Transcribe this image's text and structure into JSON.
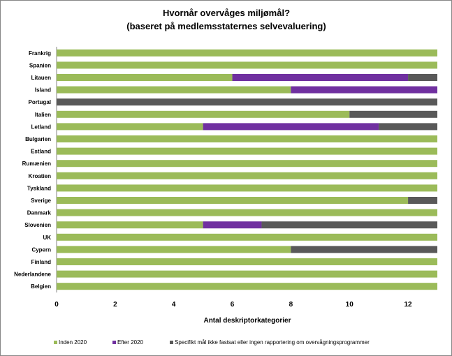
{
  "chart_data": {
    "type": "bar",
    "orientation": "horizontal",
    "stacked": true,
    "title": "Hvornår overvåges miljømål?",
    "subtitle": "(baseret på medlemsstaternes selvevaluering)",
    "xlabel": "Antal deskriptorkategorier",
    "ylabel": "",
    "xlim": [
      0,
      13
    ],
    "xticks": [
      0,
      2,
      4,
      6,
      8,
      10,
      12
    ],
    "grid": false,
    "legend_position": "bottom",
    "categories": [
      "Frankrig",
      "Spanien",
      "Litauen",
      "Island",
      "Portugal",
      "Italien",
      "Letland",
      "Bulgarien",
      "Estland",
      "Rumænien",
      "Kroatien",
      "Tyskland",
      "Sverige",
      "Danmark",
      "Slovenien",
      "UK",
      "Cypern",
      "Finland",
      "Nederlandene",
      "Belgien"
    ],
    "series": [
      {
        "name": "Inden 2020",
        "color": "#9bbb59",
        "values": [
          13,
          13,
          6,
          8,
          0,
          10,
          5,
          13,
          13,
          13,
          13,
          13,
          12,
          13,
          5,
          13,
          8,
          13,
          13,
          13
        ]
      },
      {
        "name": "Efter 2020",
        "color": "#7030a0",
        "values": [
          0,
          0,
          6,
          5,
          0,
          0,
          6,
          0,
          0,
          0,
          0,
          0,
          0,
          0,
          2,
          0,
          0,
          0,
          0,
          0
        ]
      },
      {
        "name": "Specifikt mål ikke fastsat eller ingen rapportering om overvågningsprogrammer",
        "color": "#595959",
        "values": [
          0,
          0,
          1,
          0,
          13,
          3,
          2,
          0,
          0,
          0,
          0,
          0,
          1,
          0,
          6,
          0,
          5,
          0,
          0,
          0
        ]
      }
    ]
  }
}
